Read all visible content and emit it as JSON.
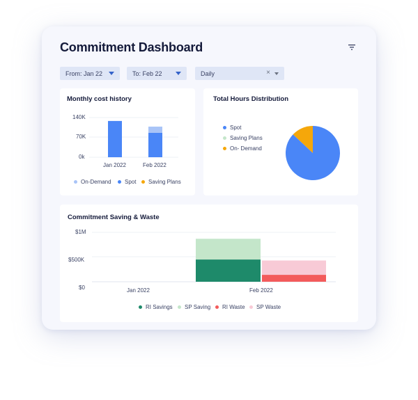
{
  "header": {
    "title": "Commitment Dashboard",
    "filter_icon": "filter-icon"
  },
  "filters": {
    "from": "From: Jan 22",
    "to": "To: Feb 22",
    "granularity": "Daily",
    "clear_symbol": "×"
  },
  "colors": {
    "spot": "#4a86f7",
    "on_demand": "#f5a70a",
    "on_demand_light": "#a9c4f7",
    "saving_plans_light": "#c4e6ca",
    "ri_savings": "#1e8a6a",
    "sp_saving": "#c4e6ca",
    "ri_waste": "#f35b5b",
    "sp_waste": "#f8cad6"
  },
  "monthly": {
    "title": "Monthly cost history",
    "legend": [
      "On-Demand",
      "Spot",
      "Saving Plans"
    ]
  },
  "distribution": {
    "title": "Total Hours Distribution",
    "legend": [
      "Spot",
      "Saving Plans",
      "On- Demand"
    ]
  },
  "commitment": {
    "title": "Commitment Saving & Waste",
    "legend": [
      "RI Savings",
      "SP Saving",
      "RI Waste",
      "SP Waste"
    ]
  },
  "chart_data": [
    {
      "type": "bar",
      "title": "Monthly cost history",
      "categories": [
        "Jan 2022",
        "Feb 2022"
      ],
      "y_ticks": [
        "140K",
        "70K",
        "0k"
      ],
      "ylim": [
        0,
        140000
      ],
      "series": [
        {
          "name": "Spot",
          "values": [
            128000,
            86000
          ]
        },
        {
          "name": "On-Demand",
          "values": [
            0,
            22000
          ]
        },
        {
          "name": "Saving Plans",
          "values": [
            0,
            0
          ]
        }
      ]
    },
    {
      "type": "pie",
      "title": "Total Hours Distribution",
      "labels": [
        "Spot",
        "Saving Plans",
        "On- Demand"
      ],
      "values": [
        87,
        0,
        13
      ]
    },
    {
      "type": "bar",
      "title": "Commitment Saving & Waste",
      "categories": [
        "Jan 2022",
        "Feb 2022"
      ],
      "y_ticks": [
        "$1M",
        "$500K",
        "$0"
      ],
      "ylim": [
        0,
        1000000
      ],
      "series": [
        {
          "name": "RI Savings",
          "values": [
            0,
            450000
          ]
        },
        {
          "name": "SP Saving",
          "values": [
            0,
            420000
          ]
        },
        {
          "name": "RI Waste",
          "values": [
            0,
            140000
          ]
        },
        {
          "name": "SP Waste",
          "values": [
            0,
            290000
          ]
        }
      ]
    }
  ]
}
